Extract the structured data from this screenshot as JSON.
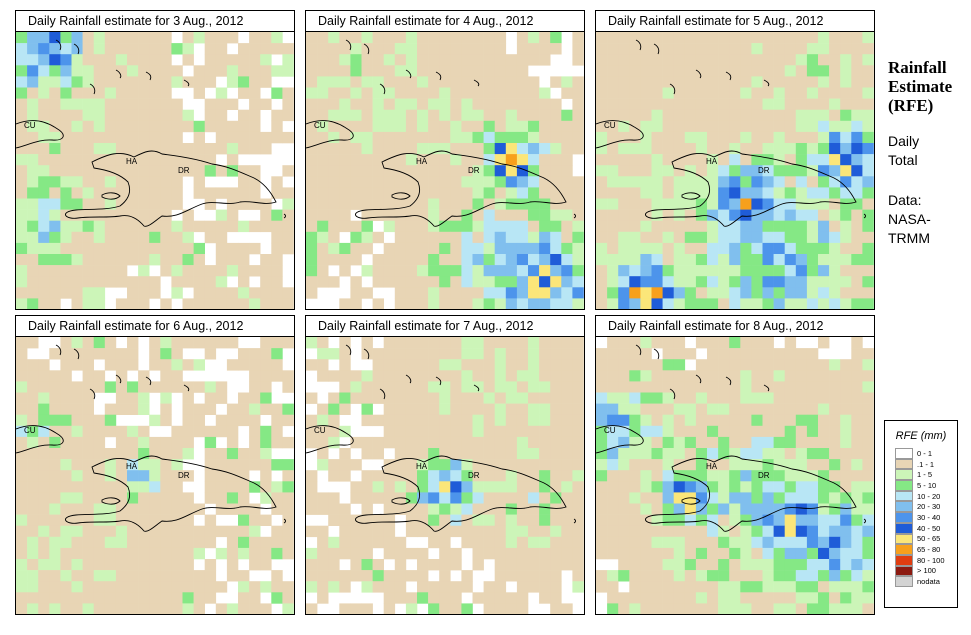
{
  "panels": [
    {
      "title": "Daily Rainfall estimate for  3 Aug., 2012",
      "labels": {
        "cu": "CU",
        "ha": "HA",
        "dr": "DR"
      }
    },
    {
      "title": "Daily Rainfall estimate for  4 Aug., 2012",
      "labels": {
        "cu": "CU",
        "ha": "HA",
        "dr": "DR"
      }
    },
    {
      "title": "Daily Rainfall estimate for  5 Aug., 2012",
      "labels": {
        "cu": "CU",
        "ha": "HA",
        "dr": "DR"
      }
    },
    {
      "title": "Daily Rainfall estimate for  6 Aug., 2012",
      "labels": {
        "cu": "CU",
        "ha": "HA",
        "dr": "DR"
      }
    },
    {
      "title": "Daily Rainfall estimate for  7 Aug., 2012",
      "labels": {
        "cu": "CU",
        "ha": "HA",
        "dr": "DR"
      }
    },
    {
      "title": "Daily Rainfall estimate for  8 Aug., 2012",
      "labels": {
        "cu": "CU",
        "ha": "HA",
        "dr": "DR"
      }
    }
  ],
  "side": {
    "title_line1": "Rainfall",
    "title_line2": "Estimate",
    "title_line3": "(RFE)",
    "daily_line1": "Daily",
    "daily_line2": "Total",
    "data_line1": "Data:",
    "data_line2": "NASA-",
    "data_line3": "TRMM"
  },
  "legend": {
    "title": "RFE (mm)",
    "items": [
      {
        "label": "0 - 1",
        "color": "#ffffff"
      },
      {
        "label": ".1 - 1",
        "color": "#e8d5b5"
      },
      {
        "label": "1 - 5",
        "color": "#ccf5b8"
      },
      {
        "label": "5 - 10",
        "color": "#85e885"
      },
      {
        "label": "10 - 20",
        "color": "#b8e6f5"
      },
      {
        "label": "20 - 30",
        "color": "#80bfee"
      },
      {
        "label": "30 - 40",
        "color": "#4d94eb"
      },
      {
        "label": "40 - 50",
        "color": "#1f5cd8"
      },
      {
        "label": "50 - 65",
        "color": "#fbe679"
      },
      {
        "label": "65 - 80",
        "color": "#f7a01c"
      },
      {
        "label": "80 - 100",
        "color": "#e03d10"
      },
      {
        "label": "> 100",
        "color": "#8c1a10"
      },
      {
        "label": "nodata",
        "color": "#d3d3d3"
      }
    ]
  },
  "rainfall_fields": [
    {
      "date": "3 Aug., 2012",
      "wet_zones": [
        {
          "region": "northwest corner",
          "max_class": 9
        },
        {
          "region": "west edge, south of Cuba",
          "max_class": 6
        },
        {
          "region": "around Cuba",
          "max_class": 3
        }
      ]
    },
    {
      "date": "4 Aug., 2012",
      "wet_zones": [
        {
          "region": "north coast Dominican Republic",
          "max_class": 10
        },
        {
          "region": "southeast sea",
          "max_class": 10
        },
        {
          "region": "south sea",
          "max_class": 6
        }
      ]
    },
    {
      "date": "5 Aug., 2012",
      "wet_zones": [
        {
          "region": "southwest sea",
          "max_class": 11
        },
        {
          "region": "south of Hispaniola",
          "max_class": 9
        },
        {
          "region": "east tip Dominican Republic",
          "max_class": 10
        },
        {
          "region": "south sea",
          "max_class": 7
        }
      ]
    },
    {
      "date": "6 Aug., 2012",
      "wet_zones": [
        {
          "region": "Haiti central",
          "max_class": 6
        },
        {
          "region": "southwest sea",
          "max_class": 3
        },
        {
          "region": "west edge near Cuba",
          "max_class": 5
        }
      ]
    },
    {
      "date": "7 Aug., 2012",
      "wet_zones": [
        {
          "region": "Haiti east",
          "max_class": 9
        },
        {
          "region": "central Hispaniola",
          "max_class": 4
        }
      ]
    },
    {
      "date": "8 Aug., 2012",
      "wet_zones": [
        {
          "region": "southern Haiti",
          "max_class": 11
        },
        {
          "region": "Dominican Republic south coast",
          "max_class": 10
        },
        {
          "region": "southeast sea",
          "max_class": 9
        },
        {
          "region": "central island",
          "max_class": 6
        },
        {
          "region": "west edge near Cuba",
          "max_class": 7
        }
      ]
    }
  ]
}
